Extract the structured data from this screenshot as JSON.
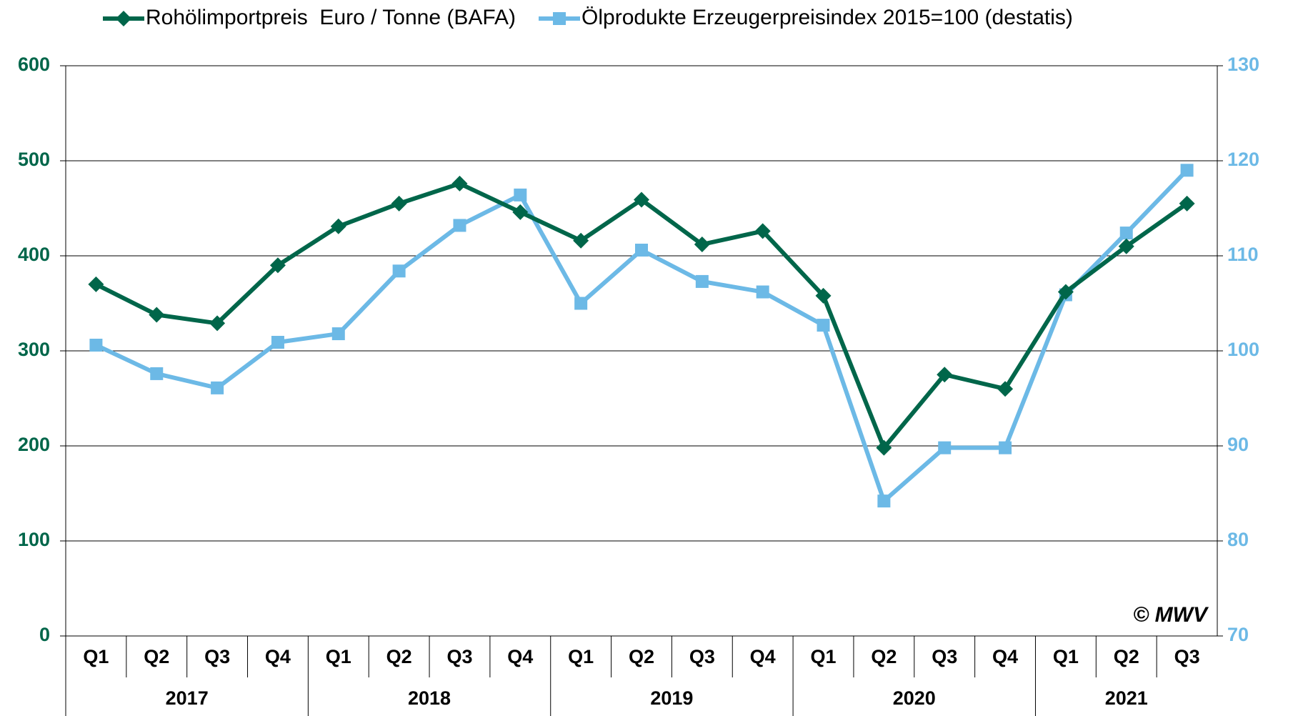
{
  "chart_data": {
    "type": "line",
    "categories": [
      "Q1",
      "Q2",
      "Q3",
      "Q4",
      "Q1",
      "Q2",
      "Q3",
      "Q4",
      "Q1",
      "Q2",
      "Q3",
      "Q4",
      "Q1",
      "Q2",
      "Q3",
      "Q4",
      "Q1",
      "Q2",
      "Q3"
    ],
    "year_groups": [
      "2017",
      "2018",
      "2019",
      "2020",
      "2021"
    ],
    "series": [
      {
        "name": "Rohölimportpreis  Euro / Tonne (BAFA)",
        "color": "#00664a",
        "marker": "diamond",
        "axis": "y",
        "values": [
          370,
          338,
          329,
          390,
          431,
          455,
          476,
          446,
          416,
          459,
          412,
          426,
          358,
          198,
          275,
          260,
          362,
          410,
          455
        ]
      },
      {
        "name": "Ölprodukte Erzeugerpreisindex 2015=100 (destatis)",
        "color": "#6cb9e6",
        "marker": "square",
        "axis": "y2",
        "values": [
          100.6,
          97.6,
          96.1,
          100.9,
          101.8,
          108.4,
          113.2,
          116.4,
          105.0,
          110.6,
          107.3,
          106.2,
          102.7,
          84.2,
          89.8,
          89.8,
          105.9,
          112.4,
          119.0
        ]
      }
    ],
    "ylim": [
      0,
      600
    ],
    "yticks": [
      0,
      100,
      200,
      300,
      400,
      500,
      600
    ],
    "y2lim": [
      70,
      130
    ],
    "y2ticks": [
      70,
      80,
      90,
      100,
      110,
      120,
      130
    ],
    "ycolor": "#00664a",
    "y2color": "#6cb9e6",
    "grid": true,
    "annotation": "© MWV"
  }
}
